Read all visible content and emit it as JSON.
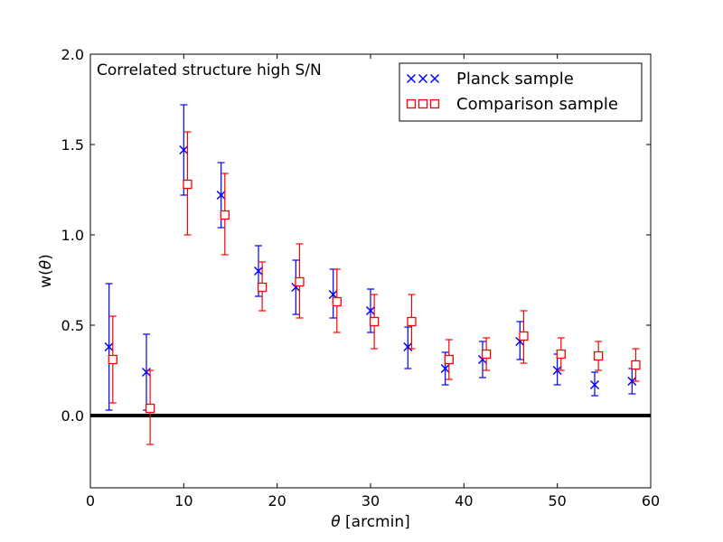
{
  "chart_data": {
    "type": "scatter",
    "title": "",
    "annotation": "Correlated structure high S/N",
    "xlabel_symbol": "θ",
    "xlabel_unit": " [arcmin]",
    "ylabel_prefix": "w(",
    "ylabel_symbol": "θ",
    "ylabel_suffix": ")",
    "xlim": [
      0,
      60
    ],
    "ylim": [
      -0.4,
      2.0
    ],
    "xticks": [
      0,
      10,
      20,
      30,
      40,
      50,
      60
    ],
    "xtick_labels": [
      "0",
      "10",
      "20",
      "30",
      "40",
      "50",
      "60"
    ],
    "yticks": [
      0.0,
      0.5,
      1.0,
      1.5,
      2.0
    ],
    "ytick_labels": [
      "0.0",
      "0.5",
      "1.0",
      "1.5",
      "2.0"
    ],
    "reference_line_y": 0.0,
    "legend_position": "top-right",
    "series": [
      {
        "name": "Planck sample",
        "color": "#0000ff",
        "marker": "x",
        "x": [
          2,
          6,
          10,
          14,
          18,
          22,
          26,
          30,
          34,
          38,
          42,
          46,
          50,
          54,
          58
        ],
        "y": [
          0.38,
          0.24,
          1.47,
          1.22,
          0.8,
          0.71,
          0.67,
          0.58,
          0.38,
          0.26,
          0.31,
          0.41,
          0.25,
          0.17,
          0.19
        ],
        "err_low": [
          0.35,
          0.21,
          0.25,
          0.18,
          0.14,
          0.15,
          0.13,
          0.12,
          0.12,
          0.09,
          0.1,
          0.1,
          0.08,
          0.06,
          0.07
        ],
        "err_high": [
          0.35,
          0.21,
          0.25,
          0.18,
          0.14,
          0.15,
          0.14,
          0.12,
          0.11,
          0.09,
          0.1,
          0.11,
          0.09,
          0.07,
          0.07
        ]
      },
      {
        "name": "Comparison sample",
        "color": "#ff0000",
        "marker": "square",
        "x": [
          2.4,
          6.4,
          10.4,
          14.4,
          18.4,
          22.4,
          26.4,
          30.4,
          34.4,
          38.4,
          42.4,
          46.4,
          50.4,
          54.4,
          58.4
        ],
        "y": [
          0.31,
          0.04,
          1.28,
          1.11,
          0.71,
          0.74,
          0.63,
          0.52,
          0.52,
          0.31,
          0.34,
          0.44,
          0.34,
          0.33,
          0.28
        ],
        "err_low": [
          0.24,
          0.2,
          0.28,
          0.22,
          0.13,
          0.2,
          0.17,
          0.15,
          0.15,
          0.11,
          0.09,
          0.15,
          0.09,
          0.08,
          0.09
        ],
        "err_high": [
          0.24,
          0.21,
          0.29,
          0.23,
          0.14,
          0.21,
          0.18,
          0.15,
          0.15,
          0.11,
          0.09,
          0.14,
          0.09,
          0.08,
          0.09
        ]
      }
    ]
  }
}
